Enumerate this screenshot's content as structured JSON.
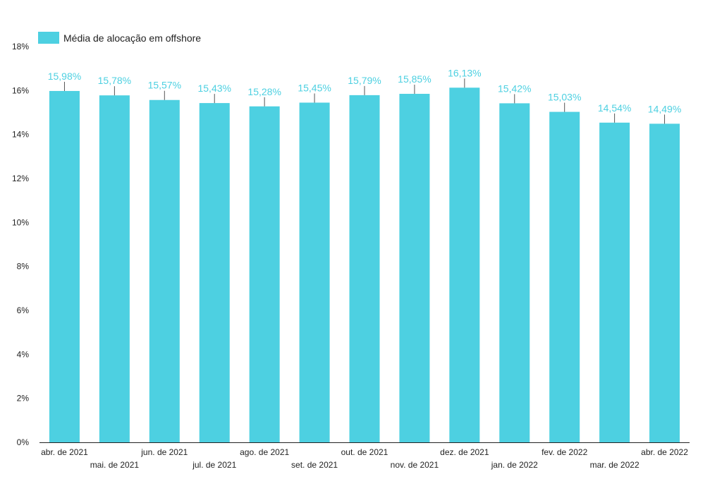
{
  "chart_data": {
    "type": "bar",
    "categories": [
      "abr. de 2021",
      "mai. de 2021",
      "jun. de 2021",
      "jul. de 2021",
      "ago. de 2021",
      "set. de 2021",
      "out. de 2021",
      "nov. de 2021",
      "dez. de 2021",
      "jan. de 2022",
      "fev. de 2022",
      "mar. de 2022",
      "abr. de 2022"
    ],
    "series": [
      {
        "name": "Média de alocação em offshore",
        "values": [
          15.98,
          15.78,
          15.57,
          15.43,
          15.28,
          15.45,
          15.79,
          15.85,
          16.13,
          15.42,
          15.03,
          14.54,
          14.49
        ],
        "labels": [
          "15,98%",
          "15,78%",
          "15,57%",
          "15,43%",
          "15,28%",
          "15,45%",
          "15,79%",
          "15,85%",
          "16,13%",
          "15,42%",
          "15,03%",
          "14,54%",
          "14,49%"
        ],
        "color": "#4dd0e1",
        "label_color": "#4dd0e1"
      }
    ],
    "yticks": [
      "0%",
      "2%",
      "4%",
      "6%",
      "8%",
      "10%",
      "12%",
      "14%",
      "16%",
      "18%"
    ],
    "ylim": [
      0,
      18
    ],
    "title": "",
    "xlabel": "",
    "ylabel": "",
    "grid": false,
    "legend_position": "top-left"
  }
}
